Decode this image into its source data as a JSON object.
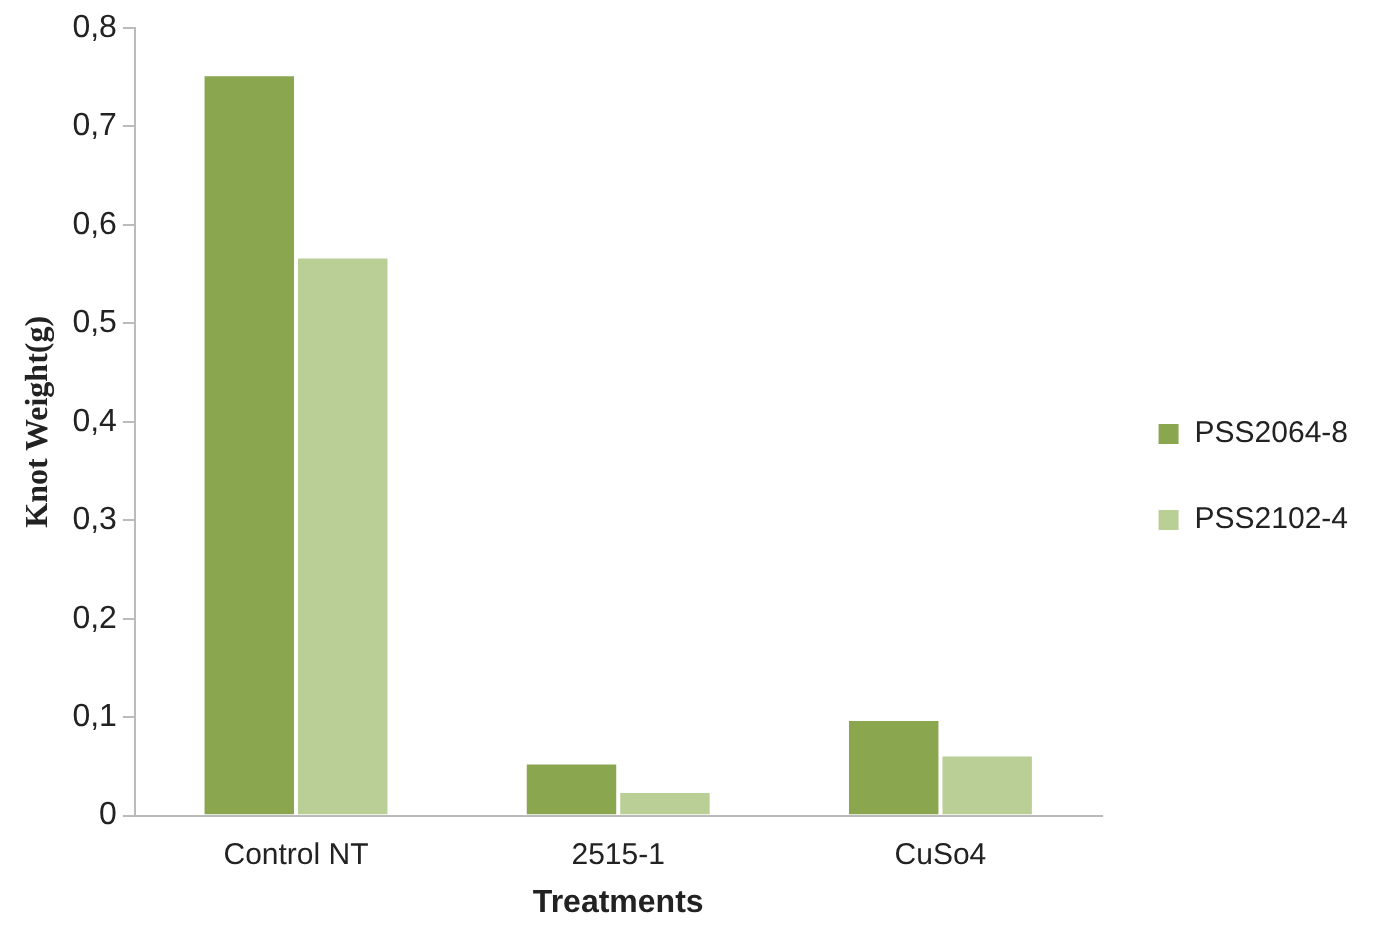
{
  "chart_data": {
    "type": "bar",
    "xlabel": "Treatments",
    "ylabel": "Knot Weight(g)",
    "categories": [
      "Control NT",
      "2515-1",
      "CuSo4"
    ],
    "series": [
      {
        "name": "PSS2064-8",
        "color": "#8aa64f",
        "values": [
          0.753,
          0.054,
          0.098
        ]
      },
      {
        "name": "PSS2102-4",
        "color": "#bacf96",
        "values": [
          0.568,
          0.025,
          0.062
        ]
      }
    ],
    "ylim": [
      0,
      0.8
    ],
    "yticks": [
      {
        "value": 0,
        "label": "0"
      },
      {
        "value": 0.1,
        "label": "0,1"
      },
      {
        "value": 0.2,
        "label": "0,2"
      },
      {
        "value": 0.3,
        "label": "0,3"
      },
      {
        "value": 0.4,
        "label": "0,4"
      },
      {
        "value": 0.5,
        "label": "0,5"
      },
      {
        "value": 0.6,
        "label": "0,6"
      },
      {
        "value": 0.7,
        "label": "0,7"
      },
      {
        "value": 0.8,
        "label": "0,8"
      }
    ],
    "grid": false,
    "legend": "right"
  }
}
